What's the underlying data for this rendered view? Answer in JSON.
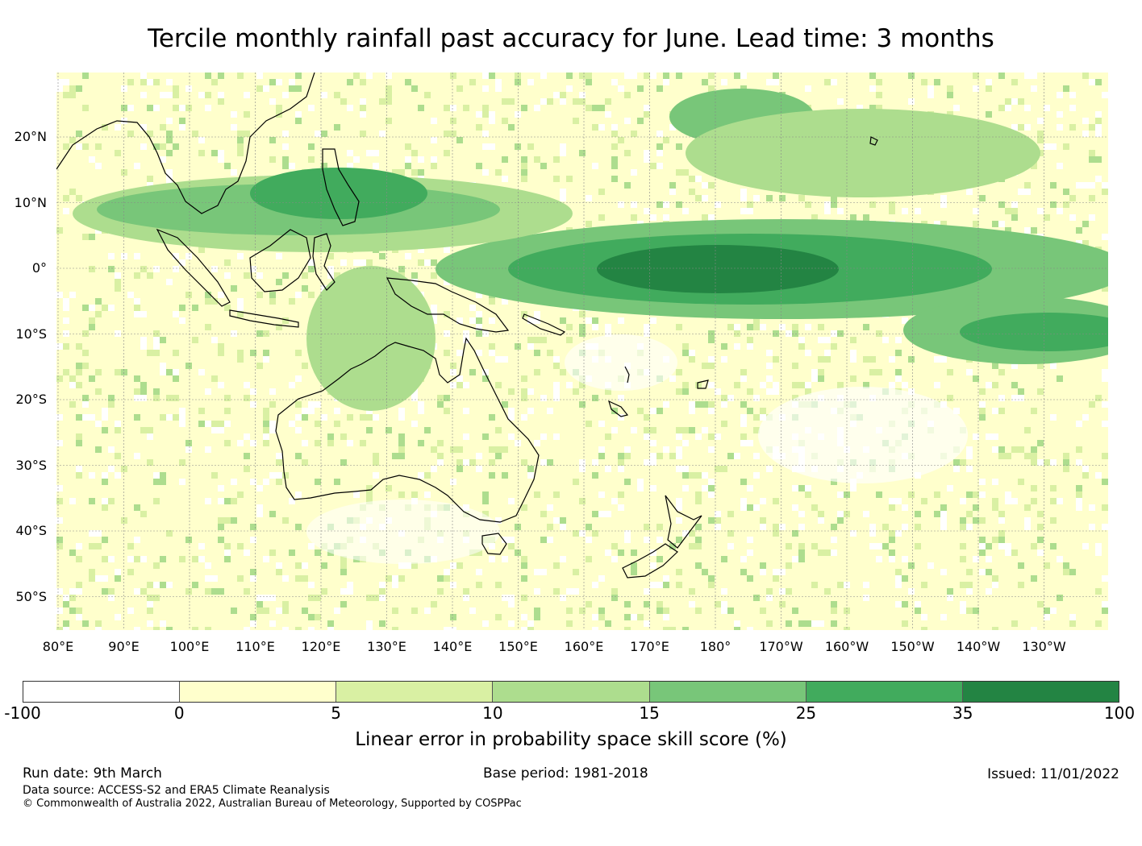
{
  "title": "Tercile monthly rainfall past accuracy for June. Lead time: 3 months",
  "map": {
    "region": "Indo-Pacific / Oceania",
    "lat_labels": [
      "20°N",
      "10°N",
      "0°",
      "10°S",
      "20°S",
      "30°S",
      "40°S",
      "50°S"
    ],
    "lon_labels": [
      "80°E",
      "90°E",
      "100°E",
      "110°E",
      "120°E",
      "130°E",
      "140°E",
      "150°E",
      "160°E",
      "170°E",
      "180°",
      "170°W",
      "160°W",
      "150°W",
      "140°W",
      "130°W"
    ]
  },
  "colorbar": {
    "label": "Linear error in probability space skill score (%)",
    "ticks": [
      "-100",
      "0",
      "5",
      "10",
      "15",
      "25",
      "35",
      "100"
    ],
    "colors": [
      "#ffffff",
      "#ffffcc",
      "#d9f0a3",
      "#addd8e",
      "#78c679",
      "#41ab5d",
      "#238443"
    ]
  },
  "footer": {
    "run_date": "Run date: 9th March",
    "base_period": "Base period: 1981-2018",
    "issued": "Issued: 11/01/2022",
    "data_source": "Data source: ACCESS-S2 and ERA5 Climate Reanalysis",
    "copyright": "© Commonwealth of Australia 2022, Australian Bureau of Meteorology, Supported by COSPPac"
  }
}
